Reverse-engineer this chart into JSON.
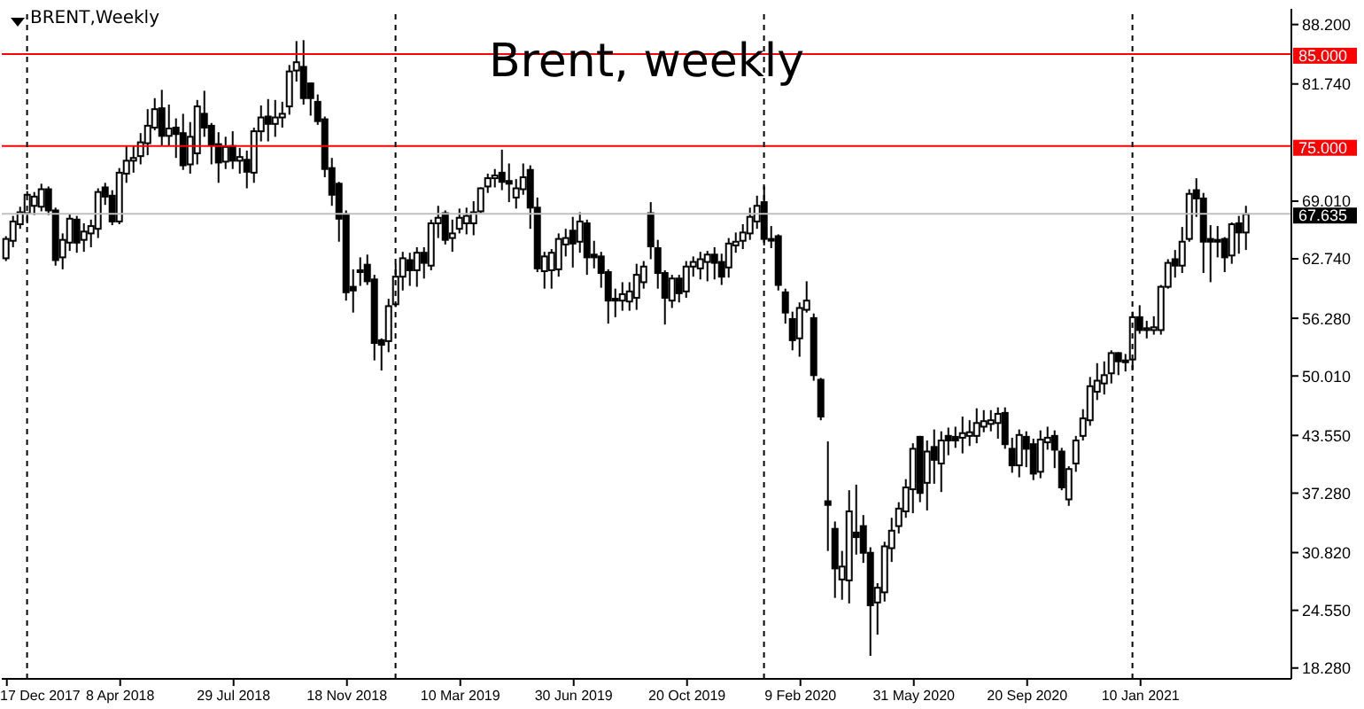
{
  "chart_data": {
    "type": "candlestick",
    "title": "Brent, weekly",
    "subtitle": "BRENT,Weekly",
    "x": [
      "2017-12-17",
      "2017-12-24",
      "2017-12-31",
      "2018-01-07",
      "2018-01-14",
      "2018-01-21",
      "2018-01-28",
      "2018-02-04",
      "2018-02-11",
      "2018-02-18",
      "2018-02-25",
      "2018-03-04",
      "2018-03-11",
      "2018-03-18",
      "2018-03-25",
      "2018-04-01",
      "2018-04-08",
      "2018-04-15",
      "2018-04-22",
      "2018-04-29",
      "2018-05-06",
      "2018-05-13",
      "2018-05-20",
      "2018-05-27",
      "2018-06-03",
      "2018-06-10",
      "2018-06-17",
      "2018-06-24",
      "2018-07-01",
      "2018-07-08",
      "2018-07-15",
      "2018-07-22",
      "2018-07-29",
      "2018-08-05",
      "2018-08-12",
      "2018-08-19",
      "2018-08-26",
      "2018-09-02",
      "2018-09-09",
      "2018-09-16",
      "2018-09-23",
      "2018-09-30",
      "2018-10-07",
      "2018-10-14",
      "2018-10-21",
      "2018-10-28",
      "2018-11-04",
      "2018-11-11",
      "2018-11-18",
      "2018-11-25",
      "2018-12-02",
      "2018-12-09",
      "2018-12-16",
      "2018-12-23",
      "2018-12-30",
      "2019-01-06",
      "2019-01-13",
      "2019-01-20",
      "2019-01-27",
      "2019-02-03",
      "2019-02-10",
      "2019-02-17",
      "2019-02-24",
      "2019-03-03",
      "2019-03-10",
      "2019-03-17",
      "2019-03-24",
      "2019-03-31",
      "2019-04-07",
      "2019-04-14",
      "2019-04-21",
      "2019-04-28",
      "2019-05-05",
      "2019-05-12",
      "2019-05-19",
      "2019-05-26",
      "2019-06-02",
      "2019-06-09",
      "2019-06-16",
      "2019-06-23",
      "2019-06-30",
      "2019-07-07",
      "2019-07-14",
      "2019-07-21",
      "2019-07-28",
      "2019-08-04",
      "2019-08-11",
      "2019-08-18",
      "2019-08-25",
      "2019-09-01",
      "2019-09-08",
      "2019-09-15",
      "2019-09-22",
      "2019-09-29",
      "2019-10-06",
      "2019-10-13",
      "2019-10-20",
      "2019-10-27",
      "2019-11-03",
      "2019-11-10",
      "2019-11-17",
      "2019-11-24",
      "2019-12-01",
      "2019-12-08",
      "2019-12-15",
      "2019-12-22",
      "2019-12-29",
      "2020-01-05",
      "2020-01-12",
      "2020-01-19",
      "2020-01-26",
      "2020-02-02",
      "2020-02-09",
      "2020-02-16",
      "2020-02-23",
      "2020-03-01",
      "2020-03-08",
      "2020-03-15",
      "2020-03-22",
      "2020-03-29",
      "2020-04-05",
      "2020-04-12",
      "2020-04-19",
      "2020-04-26",
      "2020-05-03",
      "2020-05-10",
      "2020-05-17",
      "2020-05-24",
      "2020-05-31",
      "2020-06-07",
      "2020-06-14",
      "2020-06-21",
      "2020-06-28",
      "2020-07-05",
      "2020-07-12",
      "2020-07-19",
      "2020-07-26",
      "2020-08-02",
      "2020-08-09",
      "2020-08-16",
      "2020-08-23",
      "2020-08-30",
      "2020-09-06",
      "2020-09-13",
      "2020-09-20",
      "2020-09-27",
      "2020-10-04",
      "2020-10-11",
      "2020-10-18",
      "2020-10-25",
      "2020-11-01",
      "2020-11-08",
      "2020-11-15",
      "2020-11-22",
      "2020-11-29",
      "2020-12-06",
      "2020-12-13",
      "2020-12-20",
      "2020-12-27",
      "2021-01-03",
      "2021-01-10",
      "2021-01-17",
      "2021-01-24",
      "2021-01-31",
      "2021-02-07",
      "2021-02-14",
      "2021-02-21",
      "2021-02-28",
      "2021-03-07",
      "2021-03-14",
      "2021-03-21",
      "2021-03-28",
      "2021-04-04",
      "2021-04-11",
      "2021-04-18",
      "2021-04-25"
    ],
    "ohlc": [
      [
        62.8,
        65.2,
        62.5,
        64.9
      ],
      [
        64.7,
        67.4,
        64.0,
        66.8
      ],
      [
        66.5,
        68.4,
        66.0,
        67.8
      ],
      [
        67.7,
        70.1,
        66.6,
        69.7
      ],
      [
        68.5,
        70.0,
        67.5,
        69.5
      ],
      [
        68.4,
        70.9,
        67.9,
        70.3
      ],
      [
        70.3,
        70.6,
        67.5,
        68.0
      ],
      [
        68.0,
        68.3,
        62.0,
        62.6
      ],
      [
        62.9,
        65.5,
        61.6,
        64.8
      ],
      [
        64.5,
        67.6,
        63.6,
        67.1
      ],
      [
        67.0,
        67.4,
        63.4,
        64.5
      ],
      [
        64.8,
        66.6,
        63.5,
        65.7
      ],
      [
        65.5,
        67.0,
        64.0,
        66.3
      ],
      [
        66.0,
        70.4,
        65.0,
        70.0
      ],
      [
        70.5,
        71.0,
        68.6,
        69.5
      ],
      [
        69.6,
        70.2,
        66.4,
        66.8
      ],
      [
        66.8,
        72.6,
        66.5,
        72.1
      ],
      [
        72.0,
        75.0,
        71.0,
        73.4
      ],
      [
        73.4,
        75.0,
        72.1,
        73.7
      ],
      [
        73.9,
        76.4,
        73.0,
        75.4
      ],
      [
        75.3,
        79.0,
        74.0,
        77.2
      ],
      [
        77.0,
        80.2,
        76.7,
        79.0
      ],
      [
        79.1,
        81.1,
        75.0,
        76.1
      ],
      [
        76.1,
        79.5,
        75.0,
        76.9
      ],
      [
        77.0,
        78.0,
        73.7,
        76.3
      ],
      [
        76.4,
        78.5,
        72.4,
        72.9
      ],
      [
        73.0,
        77.6,
        72.0,
        76.0
      ],
      [
        74.2,
        80.0,
        73.0,
        79.3
      ],
      [
        78.5,
        81.0,
        76.0,
        77.0
      ],
      [
        77.2,
        77.5,
        73.0,
        75.1
      ],
      [
        75.2,
        76.5,
        71.0,
        73.2
      ],
      [
        73.3,
        76.0,
        72.5,
        74.9
      ],
      [
        75.0,
        76.6,
        72.5,
        73.4
      ],
      [
        73.4,
        74.8,
        72.0,
        73.8
      ],
      [
        73.5,
        74.5,
        70.4,
        72.2
      ],
      [
        72.1,
        77.0,
        71.0,
        76.6
      ],
      [
        76.6,
        79.4,
        75.5,
        78.1
      ],
      [
        78.2,
        80.1,
        75.5,
        77.4
      ],
      [
        77.4,
        80.0,
        76.0,
        78.1
      ],
      [
        78.1,
        79.8,
        77.0,
        78.5
      ],
      [
        79.3,
        83.8,
        78.4,
        83.1
      ],
      [
        83.2,
        86.4,
        82.0,
        84.1
      ],
      [
        83.6,
        86.5,
        79.5,
        80.2
      ],
      [
        81.8,
        81.9,
        78.3,
        80.2
      ],
      [
        79.8,
        80.6,
        77.3,
        77.7
      ],
      [
        77.9,
        78.2,
        71.6,
        72.5
      ],
      [
        72.6,
        73.7,
        68.5,
        69.7
      ],
      [
        70.9,
        71.1,
        64.6,
        67.1
      ],
      [
        67.6,
        68.0,
        58.2,
        59.1
      ],
      [
        59.7,
        61.6,
        56.9,
        59.3
      ],
      [
        61.3,
        62.9,
        59.8,
        61.5
      ],
      [
        62.1,
        63.2,
        59.9,
        60.3
      ],
      [
        60.5,
        61.0,
        51.7,
        53.6
      ],
      [
        53.9,
        54.1,
        50.6,
        53.4
      ],
      [
        53.8,
        58.4,
        52.6,
        57.6
      ],
      [
        57.8,
        62.2,
        57.5,
        60.8
      ],
      [
        60.8,
        63.5,
        59.3,
        62.8
      ],
      [
        62.6,
        63.4,
        59.8,
        61.5
      ],
      [
        61.5,
        64.0,
        59.7,
        63.4
      ],
      [
        63.4,
        64.0,
        60.6,
        62.3
      ],
      [
        62.0,
        67.0,
        61.5,
        66.6
      ],
      [
        66.6,
        68.5,
        65.0,
        67.2
      ],
      [
        67.7,
        68.0,
        64.3,
        64.8
      ],
      [
        65.0,
        67.0,
        63.5,
        65.5
      ],
      [
        66.0,
        68.2,
        65.5,
        67.2
      ],
      [
        66.6,
        68.3,
        65.4,
        67.4
      ],
      [
        66.6,
        69.0,
        65.3,
        67.8
      ],
      [
        67.9,
        70.5,
        67.7,
        70.4
      ],
      [
        70.6,
        72.0,
        69.9,
        71.5
      ],
      [
        71.5,
        72.5,
        70.5,
        71.8
      ],
      [
        72.1,
        74.6,
        70.2,
        71.1
      ],
      [
        71.2,
        73.1,
        68.9,
        70.9
      ],
      [
        69.4,
        71.4,
        68.2,
        70.4
      ],
      [
        70.3,
        73.1,
        69.7,
        71.6
      ],
      [
        72.4,
        72.9,
        66.0,
        68.3
      ],
      [
        68.3,
        69.4,
        61.3,
        61.7
      ],
      [
        61.4,
        63.5,
        59.5,
        63.0
      ],
      [
        61.5,
        63.8,
        59.5,
        63.4
      ],
      [
        61.6,
        65.5,
        60.8,
        64.9
      ],
      [
        64.3,
        66.0,
        63.0,
        65.0
      ],
      [
        65.8,
        67.3,
        61.8,
        64.4
      ],
      [
        64.6,
        67.8,
        63.4,
        66.8
      ],
      [
        66.6,
        67.0,
        61.0,
        62.9
      ],
      [
        63.2,
        64.7,
        61.7,
        62.9
      ],
      [
        63.0,
        63.5,
        59.6,
        61.2
      ],
      [
        61.3,
        61.6,
        55.7,
        58.2
      ],
      [
        58.4,
        59.5,
        56.4,
        58.2
      ],
      [
        58.2,
        60.2,
        57.1,
        58.9
      ],
      [
        58.1,
        60.2,
        57.1,
        59.2
      ],
      [
        58.5,
        62.2,
        57.2,
        61.0
      ],
      [
        60.2,
        62.5,
        59.5,
        61.9
      ],
      [
        67.7,
        68.9,
        62.7,
        64.1
      ],
      [
        63.9,
        64.8,
        59.5,
        61.2
      ],
      [
        61.2,
        61.5,
        55.6,
        58.5
      ],
      [
        58.2,
        61.0,
        57.4,
        60.6
      ],
      [
        60.6,
        61.0,
        58.0,
        59.0
      ],
      [
        59.2,
        62.5,
        58.5,
        61.9
      ],
      [
        61.9,
        63.0,
        60.8,
        62.4
      ],
      [
        61.7,
        63.5,
        60.5,
        62.7
      ],
      [
        62.4,
        63.6,
        60.3,
        63.2
      ],
      [
        63.2,
        64.0,
        60.5,
        62.3
      ],
      [
        62.4,
        63.3,
        59.9,
        60.8
      ],
      [
        61.8,
        65.0,
        60.7,
        64.4
      ],
      [
        64.2,
        65.6,
        63.4,
        64.6
      ],
      [
        64.7,
        66.5,
        63.8,
        65.6
      ],
      [
        65.5,
        68.3,
        64.8,
        67.3
      ],
      [
        66.8,
        69.6,
        66.0,
        68.5
      ],
      [
        68.9,
        70.6,
        64.2,
        64.9
      ],
      [
        64.9,
        66.3,
        63.9,
        64.8
      ],
      [
        65.2,
        65.4,
        59.3,
        59.9
      ],
      [
        59.1,
        59.5,
        55.7,
        56.9
      ],
      [
        56.2,
        57.0,
        52.8,
        53.9
      ],
      [
        54.1,
        58.0,
        52.1,
        57.4
      ],
      [
        57.2,
        60.3,
        56.9,
        58.2
      ],
      [
        56.3,
        56.8,
        49.5,
        50.1
      ],
      [
        49.6,
        49.8,
        45.2,
        45.6
      ],
      [
        36.4,
        42.9,
        31.0,
        36.0
      ],
      [
        33.4,
        34.2,
        25.9,
        29.1
      ],
      [
        27.9,
        31.0,
        25.7,
        29.3
      ],
      [
        27.8,
        37.6,
        25.3,
        35.3
      ],
      [
        33.0,
        38.2,
        30.6,
        32.5
      ],
      [
        33.7,
        34.9,
        29.7,
        30.8
      ],
      [
        30.8,
        31.4,
        19.6,
        25.1
      ],
      [
        25.4,
        27.5,
        21.9,
        27.0
      ],
      [
        26.5,
        32.0,
        25.5,
        31.5
      ],
      [
        31.3,
        34.6,
        29.8,
        33.2
      ],
      [
        33.7,
        36.3,
        32.9,
        35.6
      ],
      [
        35.3,
        38.8,
        34.6,
        37.9
      ],
      [
        37.7,
        42.7,
        35.1,
        42.1
      ],
      [
        43.4,
        43.5,
        36.3,
        37.3
      ],
      [
        38.4,
        43.0,
        35.4,
        41.8
      ],
      [
        42.3,
        44.2,
        38.3,
        40.9
      ],
      [
        40.5,
        44.0,
        37.4,
        43.0
      ],
      [
        43.5,
        44.4,
        41.4,
        43.0
      ],
      [
        43.4,
        44.5,
        42.2,
        43.0
      ],
      [
        43.3,
        45.6,
        41.6,
        43.8
      ],
      [
        43.5,
        45.2,
        42.4,
        43.9
      ],
      [
        43.5,
        46.5,
        42.7,
        44.9
      ],
      [
        44.5,
        46.3,
        43.9,
        45.1
      ],
      [
        44.8,
        46.3,
        44.0,
        45.2
      ],
      [
        44.9,
        46.6,
        43.2,
        45.9
      ],
      [
        46.0,
        46.6,
        42.1,
        42.6
      ],
      [
        42.1,
        43.3,
        39.5,
        40.3
      ],
      [
        40.3,
        44.2,
        39.0,
        43.6
      ],
      [
        43.4,
        44.0,
        40.1,
        42.1
      ],
      [
        42.6,
        43.2,
        38.7,
        39.4
      ],
      [
        39.6,
        44.1,
        38.9,
        43.1
      ],
      [
        42.8,
        44.5,
        42.0,
        43.3
      ],
      [
        43.5,
        44.1,
        40.0,
        42.0
      ],
      [
        41.8,
        42.2,
        37.6,
        37.9
      ],
      [
        36.6,
        40.2,
        35.9,
        39.9
      ],
      [
        40.5,
        43.5,
        39.6,
        43.0
      ],
      [
        43.5,
        46.4,
        43.0,
        45.4
      ],
      [
        45.2,
        49.9,
        44.6,
        48.9
      ],
      [
        48.3,
        51.4,
        47.4,
        49.5
      ],
      [
        49.2,
        51.6,
        48.0,
        50.1
      ],
      [
        50.3,
        52.8,
        49.2,
        52.5
      ],
      [
        52.5,
        52.6,
        50.1,
        51.6
      ],
      [
        51.7,
        52.4,
        50.5,
        51.5
      ],
      [
        51.8,
        57.0,
        50.7,
        56.4
      ],
      [
        56.4,
        57.7,
        54.6,
        55.0
      ],
      [
        55.0,
        56.0,
        54.1,
        55.2
      ],
      [
        55.0,
        56.5,
        54.5,
        55.3
      ],
      [
        55.0,
        59.9,
        54.5,
        59.7
      ],
      [
        59.7,
        62.7,
        59.5,
        62.3
      ],
      [
        62.7,
        63.7,
        60.7,
        62.0
      ],
      [
        62.0,
        66.2,
        61.2,
        64.6
      ],
      [
        64.9,
        70.3,
        64.6,
        69.8
      ],
      [
        70.2,
        71.5,
        67.3,
        69.3
      ],
      [
        69.3,
        69.9,
        61.2,
        64.6
      ],
      [
        64.9,
        66.4,
        60.2,
        64.6
      ],
      [
        64.8,
        66.3,
        62.9,
        64.6
      ],
      [
        64.9,
        65.1,
        61.3,
        62.9
      ],
      [
        63.1,
        66.7,
        62.2,
        66.5
      ],
      [
        66.6,
        67.4,
        63.3,
        65.6
      ],
      [
        65.6,
        68.5,
        63.7,
        67.6
      ]
    ],
    "xlim": [
      "2017-12-12",
      "2021-06-08"
    ],
    "xticks": [
      {
        "value": "2017-12-17",
        "label": "17 Dec 2017"
      },
      {
        "value": "2018-04-08",
        "label": "8 Apr 2018"
      },
      {
        "value": "2018-07-29",
        "label": "29 Jul 2018"
      },
      {
        "value": "2018-11-18",
        "label": "18 Nov 2018"
      },
      {
        "value": "2019-03-10",
        "label": "10 Mar 2019"
      },
      {
        "value": "2019-06-30",
        "label": "30 Jun 2019"
      },
      {
        "value": "2019-10-20",
        "label": "20 Oct 2019"
      },
      {
        "value": "2020-02-09",
        "label": "9 Feb 2020"
      },
      {
        "value": "2020-05-31",
        "label": "31 May 2020"
      },
      {
        "value": "2020-09-20",
        "label": "20 Sep 2020"
      },
      {
        "value": "2021-01-10",
        "label": "10 Jan 2021"
      }
    ],
    "ylim": [
      17.1,
      89.9
    ],
    "yticks": [
      {
        "value": 88.2,
        "label": "88.200"
      },
      {
        "value": 81.74,
        "label": "81.740"
      },
      {
        "value": 69.01,
        "label": "69.010"
      },
      {
        "value": 62.74,
        "label": "62.740"
      },
      {
        "value": 56.28,
        "label": "56.280"
      },
      {
        "value": 50.01,
        "label": "50.010"
      },
      {
        "value": 43.55,
        "label": "43.550"
      },
      {
        "value": 37.28,
        "label": "37.280"
      },
      {
        "value": 30.82,
        "label": "30.820"
      },
      {
        "value": 24.55,
        "label": "24.550"
      },
      {
        "value": 18.28,
        "label": "18.280"
      }
    ],
    "ref_lines": [
      {
        "axis": "y",
        "value": 85,
        "label": "85.000",
        "color": "#ff0000"
      },
      {
        "axis": "y",
        "value": 75,
        "label": "75.000",
        "color": "#ff0000"
      },
      {
        "axis": "y",
        "value": 67.635,
        "label": "67.635",
        "color": "#c0c0c0"
      },
      {
        "axis": "x",
        "value": "2018-01-06",
        "color": "#000000",
        "line_style": "dashed"
      },
      {
        "axis": "x",
        "value": "2019-01-05",
        "color": "#000000",
        "line_style": "dashed"
      },
      {
        "axis": "x",
        "value": "2020-01-04",
        "color": "#000000",
        "line_style": "dashed"
      },
      {
        "axis": "x",
        "value": "2021-01-02",
        "color": "#000000",
        "line_style": "dashed"
      }
    ],
    "grid": false,
    "legend": false
  }
}
